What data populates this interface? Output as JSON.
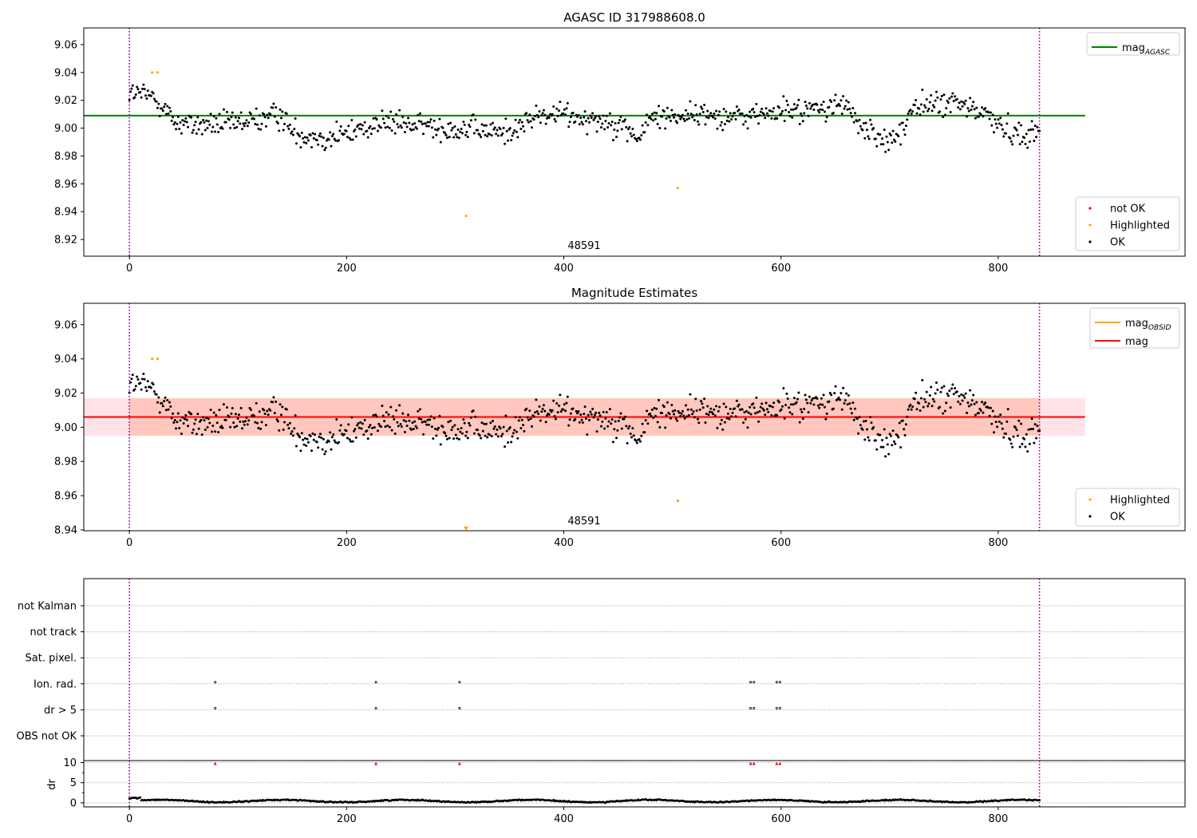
{
  "figure": {
    "title_top": "AGASC ID 317988608.0",
    "title_mid": "Magnitude Estimates",
    "obsid_label": "48591"
  },
  "colors": {
    "ok": "#000000",
    "highlighted": "#ffa500",
    "not_ok": "#ff0000",
    "mag_agasc_line": "#008000",
    "mag_line": "#ff0000",
    "mag_obsid_line": "#ffa500",
    "band_fill": "#ff7f50",
    "band_outer": "#ffc0cb",
    "vline": "#800080",
    "grid": "#b0b0b0"
  },
  "chart_data": [
    {
      "type": "scatter",
      "title": "AGASC ID 317988608.0",
      "xlim": [
        -42,
        972
      ],
      "ylim": [
        8.908,
        9.072
      ],
      "x_ticks": [
        0,
        200,
        400,
        600,
        800
      ],
      "y_ticks": [
        8.92,
        8.94,
        8.96,
        8.98,
        9.0,
        9.02,
        9.04,
        9.06
      ],
      "y_tick_labels": [
        "8.92",
        "8.94",
        "8.96",
        "8.98",
        "9.00",
        "9.02",
        "9.04",
        "9.06"
      ],
      "vlines": [
        0,
        838
      ],
      "hlines": [
        {
          "name": "mag_AGASC",
          "y": 9.009,
          "x_range": [
            -42,
            880
          ]
        }
      ],
      "legend_lines": [
        {
          "label": "mag",
          "sub": "AGASC",
          "color": "#008000"
        }
      ],
      "legend_markers": [
        {
          "label": "not OK",
          "color": "#ff0000"
        },
        {
          "label": "Highlighted",
          "color": "#ffa500"
        },
        {
          "label": "OK",
          "color": "#000000"
        }
      ],
      "highlighted_points": [
        [
          21,
          9.04
        ],
        [
          26,
          9.04
        ],
        [
          310,
          8.937
        ],
        [
          505,
          8.957
        ]
      ],
      "ok_series": {
        "x_range": [
          0,
          838
        ],
        "count": 840,
        "base": 9.005
      }
    },
    {
      "type": "scatter",
      "title": "Magnitude Estimates",
      "xlim": [
        -42,
        972
      ],
      "ylim": [
        8.9395,
        9.0725
      ],
      "x_ticks": [
        0,
        200,
        400,
        600,
        800
      ],
      "y_ticks": [
        8.94,
        8.96,
        8.98,
        9.0,
        9.02,
        9.04,
        9.06
      ],
      "y_tick_labels": [
        "8.94",
        "8.96",
        "8.98",
        "9.00",
        "9.02",
        "9.04",
        "9.06"
      ],
      "vlines": [
        0,
        838
      ],
      "hlines": [
        {
          "name": "mag",
          "y": 9.006,
          "x_range": [
            -42,
            880
          ]
        }
      ],
      "band": {
        "y_low": 8.995,
        "y_high": 9.017,
        "x_range": [
          -42,
          880
        ]
      },
      "legend_lines": [
        {
          "label": "mag",
          "sub": "OBSID",
          "color": "#ffa500"
        },
        {
          "label": "mag",
          "sub": "",
          "color": "#ff0000"
        }
      ],
      "legend_markers": [
        {
          "label": "Highlighted",
          "color": "#ffa500"
        },
        {
          "label": "OK",
          "color": "#000000"
        }
      ],
      "highlighted_points": [
        [
          21,
          9.04
        ],
        [
          26,
          9.04
        ],
        [
          505,
          8.957
        ]
      ],
      "off_scale_marker": {
        "x": 310,
        "y": 8.94
      }
    },
    {
      "type": "scatter",
      "xlim": [
        -42,
        972
      ],
      "categories": [
        "not Kalman",
        "not track",
        "Sat. pixel.",
        "Ion. rad.",
        "dr > 5",
        "OBS not OK"
      ],
      "vlines": [
        0,
        838
      ],
      "flags": {
        "Ion. rad.": [
          79,
          227,
          304,
          572,
          575,
          596,
          599
        ],
        "dr > 5": [
          79,
          227,
          304,
          572,
          575,
          596,
          599
        ]
      }
    },
    {
      "type": "scatter",
      "ylabel": "dr",
      "xlim": [
        -42,
        972
      ],
      "ylim": [
        -1,
        10.5
      ],
      "x_ticks": [
        0,
        200,
        400,
        600,
        800
      ],
      "y_ticks": [
        0,
        5,
        10
      ],
      "y_tick_labels": [
        "0",
        "5",
        "10"
      ],
      "vlines": [
        0,
        838
      ],
      "capped_points_at_10": [
        79,
        227,
        304,
        572,
        575,
        596,
        599
      ],
      "dr_series": {
        "x_range": [
          0,
          838
        ],
        "count": 840,
        "typical": 0.45
      }
    }
  ]
}
